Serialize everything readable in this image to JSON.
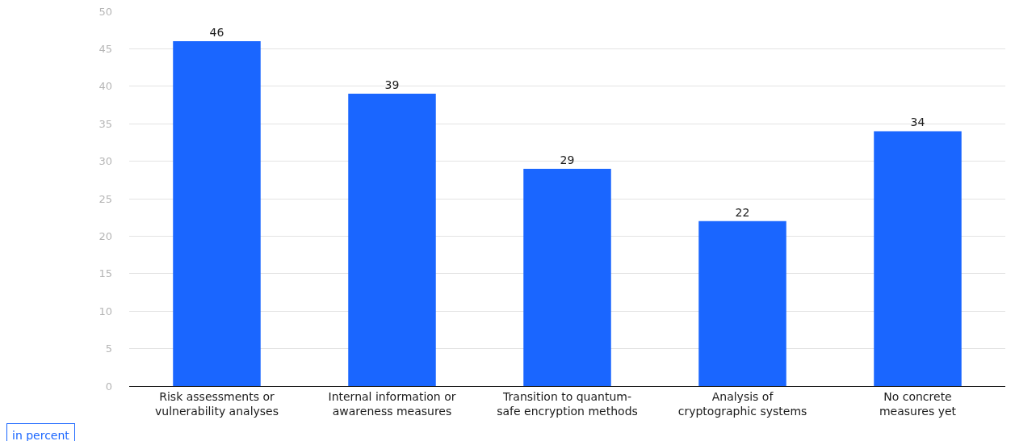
{
  "chart_data": {
    "type": "bar",
    "categories": [
      "Risk assessments or\nvulnerability analyses",
      "Internal information or\nawareness measures",
      "Transition to quantum-\nsafe encryption methods",
      "Analysis of\ncryptographic systems",
      "No concrete\nmeasures yet"
    ],
    "values": [
      46,
      39,
      29,
      22,
      34
    ],
    "color": "#1a66ff",
    "data_labels": true,
    "ylim": [
      0,
      50
    ],
    "yticks": [
      0,
      5,
      10,
      15,
      20,
      25,
      30,
      35,
      40,
      45,
      50
    ],
    "grid": "y",
    "legend": false,
    "annotations": [
      "in percent"
    ]
  }
}
